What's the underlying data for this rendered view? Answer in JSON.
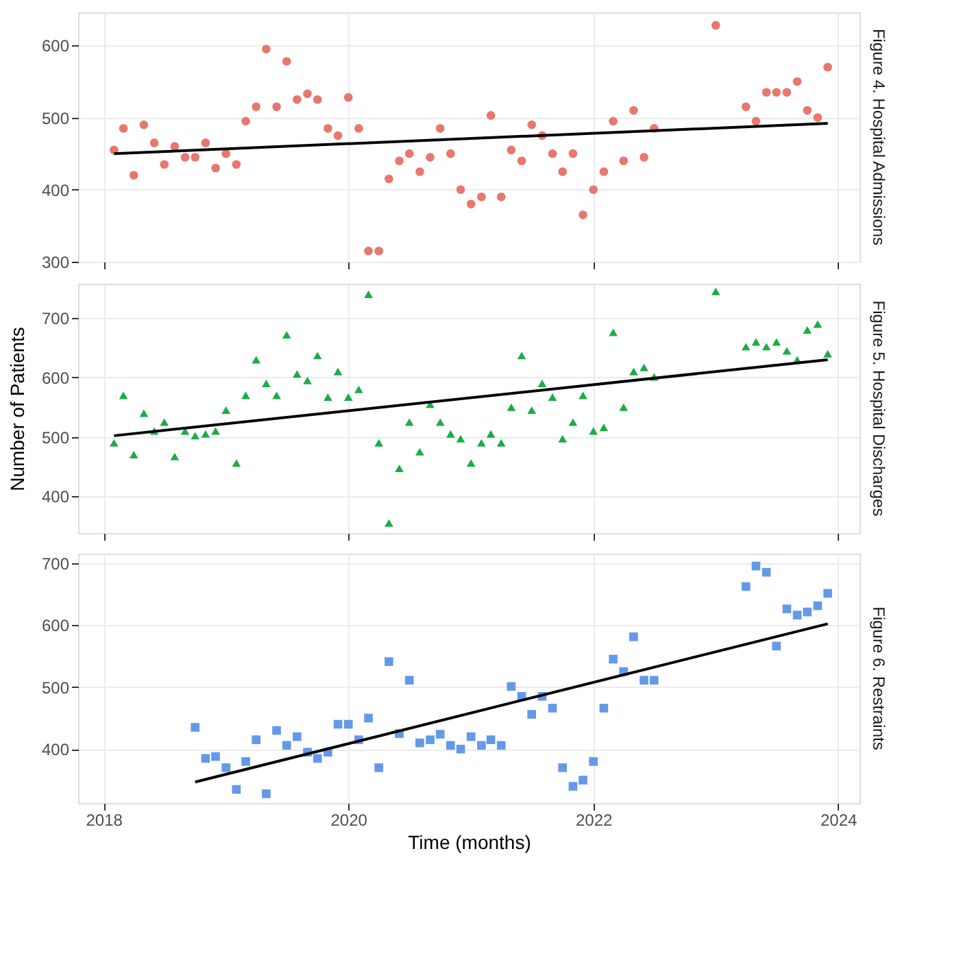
{
  "chart_data": [
    {
      "type": "scatter",
      "annotations": [
        "Figure 4. Hospital Admissions"
      ],
      "grid": true,
      "tick_labels": "y",
      "xlim": [
        "2017-10-17",
        "2024-03-05"
      ],
      "xticks": [
        "2018",
        "2020",
        "2022",
        "2024"
      ],
      "ylim": [
        300,
        646
      ],
      "yticks": [
        300,
        400,
        500,
        600
      ],
      "x": [
        "2018-02",
        "2018-03",
        "2018-04",
        "2018-05",
        "2018-06",
        "2018-07",
        "2018-08",
        "2018-09",
        "2018-10",
        "2018-11",
        "2018-12",
        "2019-01",
        "2019-02",
        "2019-03",
        "2019-04",
        "2019-05",
        "2019-06",
        "2019-07",
        "2019-08",
        "2019-09",
        "2019-10",
        "2019-11",
        "2019-12",
        "2020-01",
        "2020-02",
        "2020-03",
        "2020-04",
        "2020-05",
        "2020-06",
        "2020-07",
        "2020-08",
        "2020-09",
        "2020-10",
        "2020-11",
        "2020-12",
        "2021-01",
        "2021-02",
        "2021-03",
        "2021-04",
        "2021-05",
        "2021-06",
        "2021-07",
        "2021-08",
        "2021-09",
        "2021-10",
        "2021-11",
        "2021-12",
        "2022-01",
        "2022-02",
        "2022-03",
        "2022-04",
        "2022-05",
        "2022-06",
        "2022-07",
        "2023-01",
        "2023-04",
        "2023-05",
        "2023-06",
        "2023-07",
        "2023-08",
        "2023-09",
        "2023-10",
        "2023-11",
        "2023-12"
      ],
      "series": [
        {
          "type": "scatter",
          "marker": "circle",
          "color": "#e8776d",
          "values": [
            455,
            485,
            420,
            490,
            465,
            435,
            460,
            445,
            445,
            465,
            430,
            450,
            435,
            495,
            515,
            595,
            515,
            578,
            525,
            533,
            525,
            485,
            475,
            528,
            485,
            315,
            315,
            415,
            440,
            450,
            425,
            445,
            485,
            450,
            400,
            380,
            390,
            503,
            390,
            455,
            440,
            490,
            475,
            450,
            425,
            450,
            365,
            400,
            425,
            495,
            440,
            510,
            445,
            485,
            628,
            515,
            495,
            535,
            535,
            535,
            550,
            510,
            500,
            570
          ]
        },
        {
          "type": "line",
          "marker": "none",
          "line_style": "solid",
          "color": "#000000",
          "x": [
            "2018-02",
            "2023-12"
          ],
          "values": [
            450,
            492
          ]
        }
      ]
    },
    {
      "type": "scatter",
      "annotations": [
        "Figure 5. Hospital Discharges"
      ],
      "ylabel": "Number of Patients",
      "grid": true,
      "tick_labels": "y",
      "xlim": [
        "2017-10-17",
        "2024-03-05"
      ],
      "xticks": [
        "2018",
        "2020",
        "2022",
        "2024"
      ],
      "ylim": [
        338,
        758
      ],
      "yticks": [
        400,
        500,
        600,
        700
      ],
      "x": [
        "2018-02",
        "2018-03",
        "2018-04",
        "2018-05",
        "2018-06",
        "2018-07",
        "2018-08",
        "2018-09",
        "2018-10",
        "2018-11",
        "2018-12",
        "2019-01",
        "2019-02",
        "2019-03",
        "2019-04",
        "2019-05",
        "2019-06",
        "2019-07",
        "2019-08",
        "2019-09",
        "2019-10",
        "2019-11",
        "2019-12",
        "2020-01",
        "2020-02",
        "2020-03",
        "2020-04",
        "2020-05",
        "2020-06",
        "2020-07",
        "2020-08",
        "2020-09",
        "2020-10",
        "2020-11",
        "2020-12",
        "2021-01",
        "2021-02",
        "2021-03",
        "2021-04",
        "2021-05",
        "2021-06",
        "2021-07",
        "2021-08",
        "2021-09",
        "2021-10",
        "2021-11",
        "2021-12",
        "2022-01",
        "2022-02",
        "2022-03",
        "2022-04",
        "2022-05",
        "2022-06",
        "2022-07",
        "2023-01",
        "2023-04",
        "2023-05",
        "2023-06",
        "2023-07",
        "2023-08",
        "2023-09",
        "2023-10",
        "2023-11",
        "2023-12"
      ],
      "series": [
        {
          "type": "scatter",
          "marker": "triangle",
          "color": "#1aad45",
          "values": [
            490,
            570,
            470,
            540,
            510,
            525,
            467,
            510,
            502,
            505,
            510,
            545,
            456,
            570,
            630,
            590,
            570,
            672,
            606,
            595,
            637,
            567,
            610,
            567,
            580,
            740,
            490,
            355,
            447,
            525,
            475,
            555,
            525,
            505,
            497,
            456,
            490,
            505,
            490,
            550,
            637,
            545,
            590,
            567,
            497,
            525,
            570,
            510,
            516,
            676,
            550,
            610,
            617,
            601,
            745,
            652,
            660,
            652,
            660,
            645,
            630,
            680,
            690,
            640
          ]
        },
        {
          "type": "line",
          "marker": "none",
          "line_style": "solid",
          "color": "#000000",
          "x": [
            "2018-02",
            "2023-12"
          ],
          "values": [
            502,
            630
          ]
        }
      ]
    },
    {
      "type": "scatter",
      "annotations": [
        "Figure 6. Restraints"
      ],
      "xlabel": "Time (months)",
      "grid": true,
      "xlim": [
        "2017-10-17",
        "2024-03-05"
      ],
      "xticks": [
        "2018",
        "2020",
        "2022",
        "2024"
      ],
      "ylim": [
        313,
        715
      ],
      "yticks": [
        400,
        500,
        600,
        700
      ],
      "x": [
        "2018-10",
        "2018-11",
        "2018-12",
        "2019-01",
        "2019-02",
        "2019-03",
        "2019-04",
        "2019-05",
        "2019-06",
        "2019-07",
        "2019-08",
        "2019-09",
        "2019-10",
        "2019-11",
        "2019-12",
        "2020-01",
        "2020-02",
        "2020-03",
        "2020-04",
        "2020-05",
        "2020-06",
        "2020-07",
        "2020-08",
        "2020-09",
        "2020-10",
        "2020-11",
        "2020-12",
        "2021-01",
        "2021-02",
        "2021-03",
        "2021-04",
        "2021-05",
        "2021-06",
        "2021-07",
        "2021-08",
        "2021-09",
        "2021-10",
        "2021-11",
        "2021-12",
        "2022-01",
        "2022-02",
        "2022-03",
        "2022-04",
        "2022-05",
        "2022-06",
        "2022-07",
        "2023-04",
        "2023-05",
        "2023-06",
        "2023-07",
        "2023-08",
        "2023-09",
        "2023-10",
        "2023-11",
        "2023-12"
      ],
      "series": [
        {
          "type": "scatter",
          "marker": "square",
          "color": "#6499ea",
          "values": [
            435,
            385,
            388,
            370,
            335,
            380,
            415,
            328,
            430,
            406,
            420,
            395,
            385,
            395,
            440,
            440,
            415,
            450,
            370,
            541,
            425,
            511,
            410,
            415,
            424,
            406,
            400,
            420,
            406,
            415,
            406,
            501,
            485,
            456,
            485,
            466,
            370,
            340,
            350,
            380,
            466,
            545,
            525,
            581,
            511,
            511,
            662,
            695,
            685,
            566,
            626,
            616,
            621,
            631,
            651
          ]
        },
        {
          "type": "line",
          "marker": "none",
          "line_style": "solid",
          "color": "#000000",
          "x": [
            "2018-10",
            "2023-12"
          ],
          "values": [
            347,
            602
          ]
        }
      ]
    }
  ]
}
